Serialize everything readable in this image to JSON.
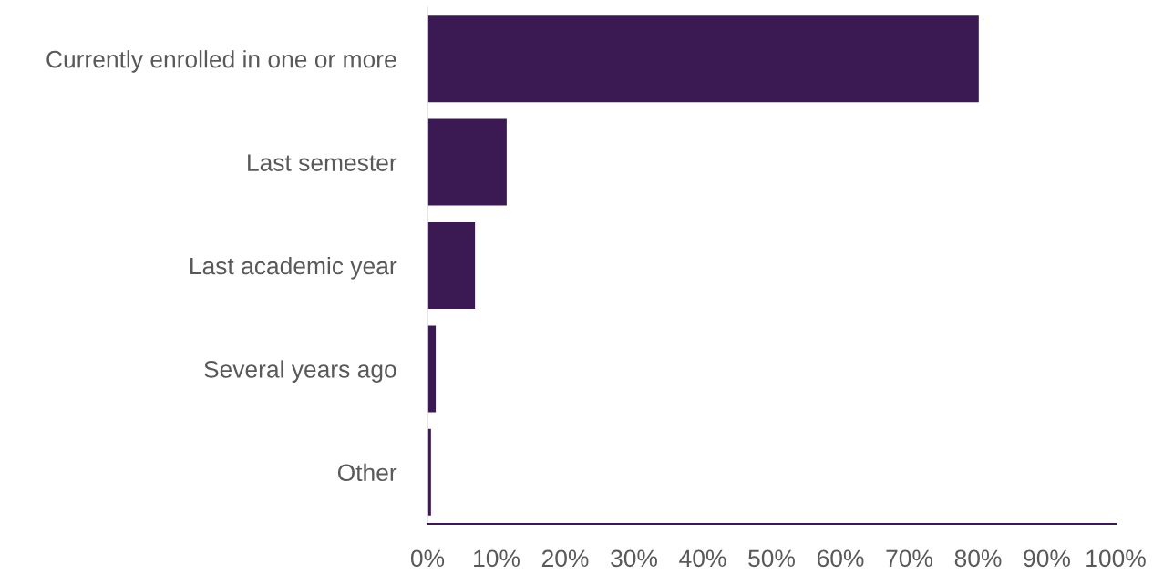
{
  "chart_data": {
    "type": "bar",
    "orientation": "horizontal",
    "categories": [
      "Currently enrolled in one or more",
      "Last semester",
      "Last academic year",
      "Several years ago",
      "Other"
    ],
    "values": [
      80.2,
      11.6,
      7.0,
      1.3,
      0.6
    ],
    "color": "#3b1952",
    "xlim": [
      0,
      100
    ],
    "xticks": [
      {
        "value": 0,
        "label": "0%"
      },
      {
        "value": 10,
        "label": "10%"
      },
      {
        "value": 20,
        "label": "20%"
      },
      {
        "value": 30,
        "label": "30%"
      },
      {
        "value": 40,
        "label": "40%"
      },
      {
        "value": 50,
        "label": "50%"
      },
      {
        "value": 60,
        "label": "60%"
      },
      {
        "value": 70,
        "label": "70%"
      },
      {
        "value": 80,
        "label": "80%"
      },
      {
        "value": 90,
        "label": "90%"
      },
      {
        "value": 100,
        "label": "100%"
      }
    ],
    "grid": false,
    "legend": false
  }
}
